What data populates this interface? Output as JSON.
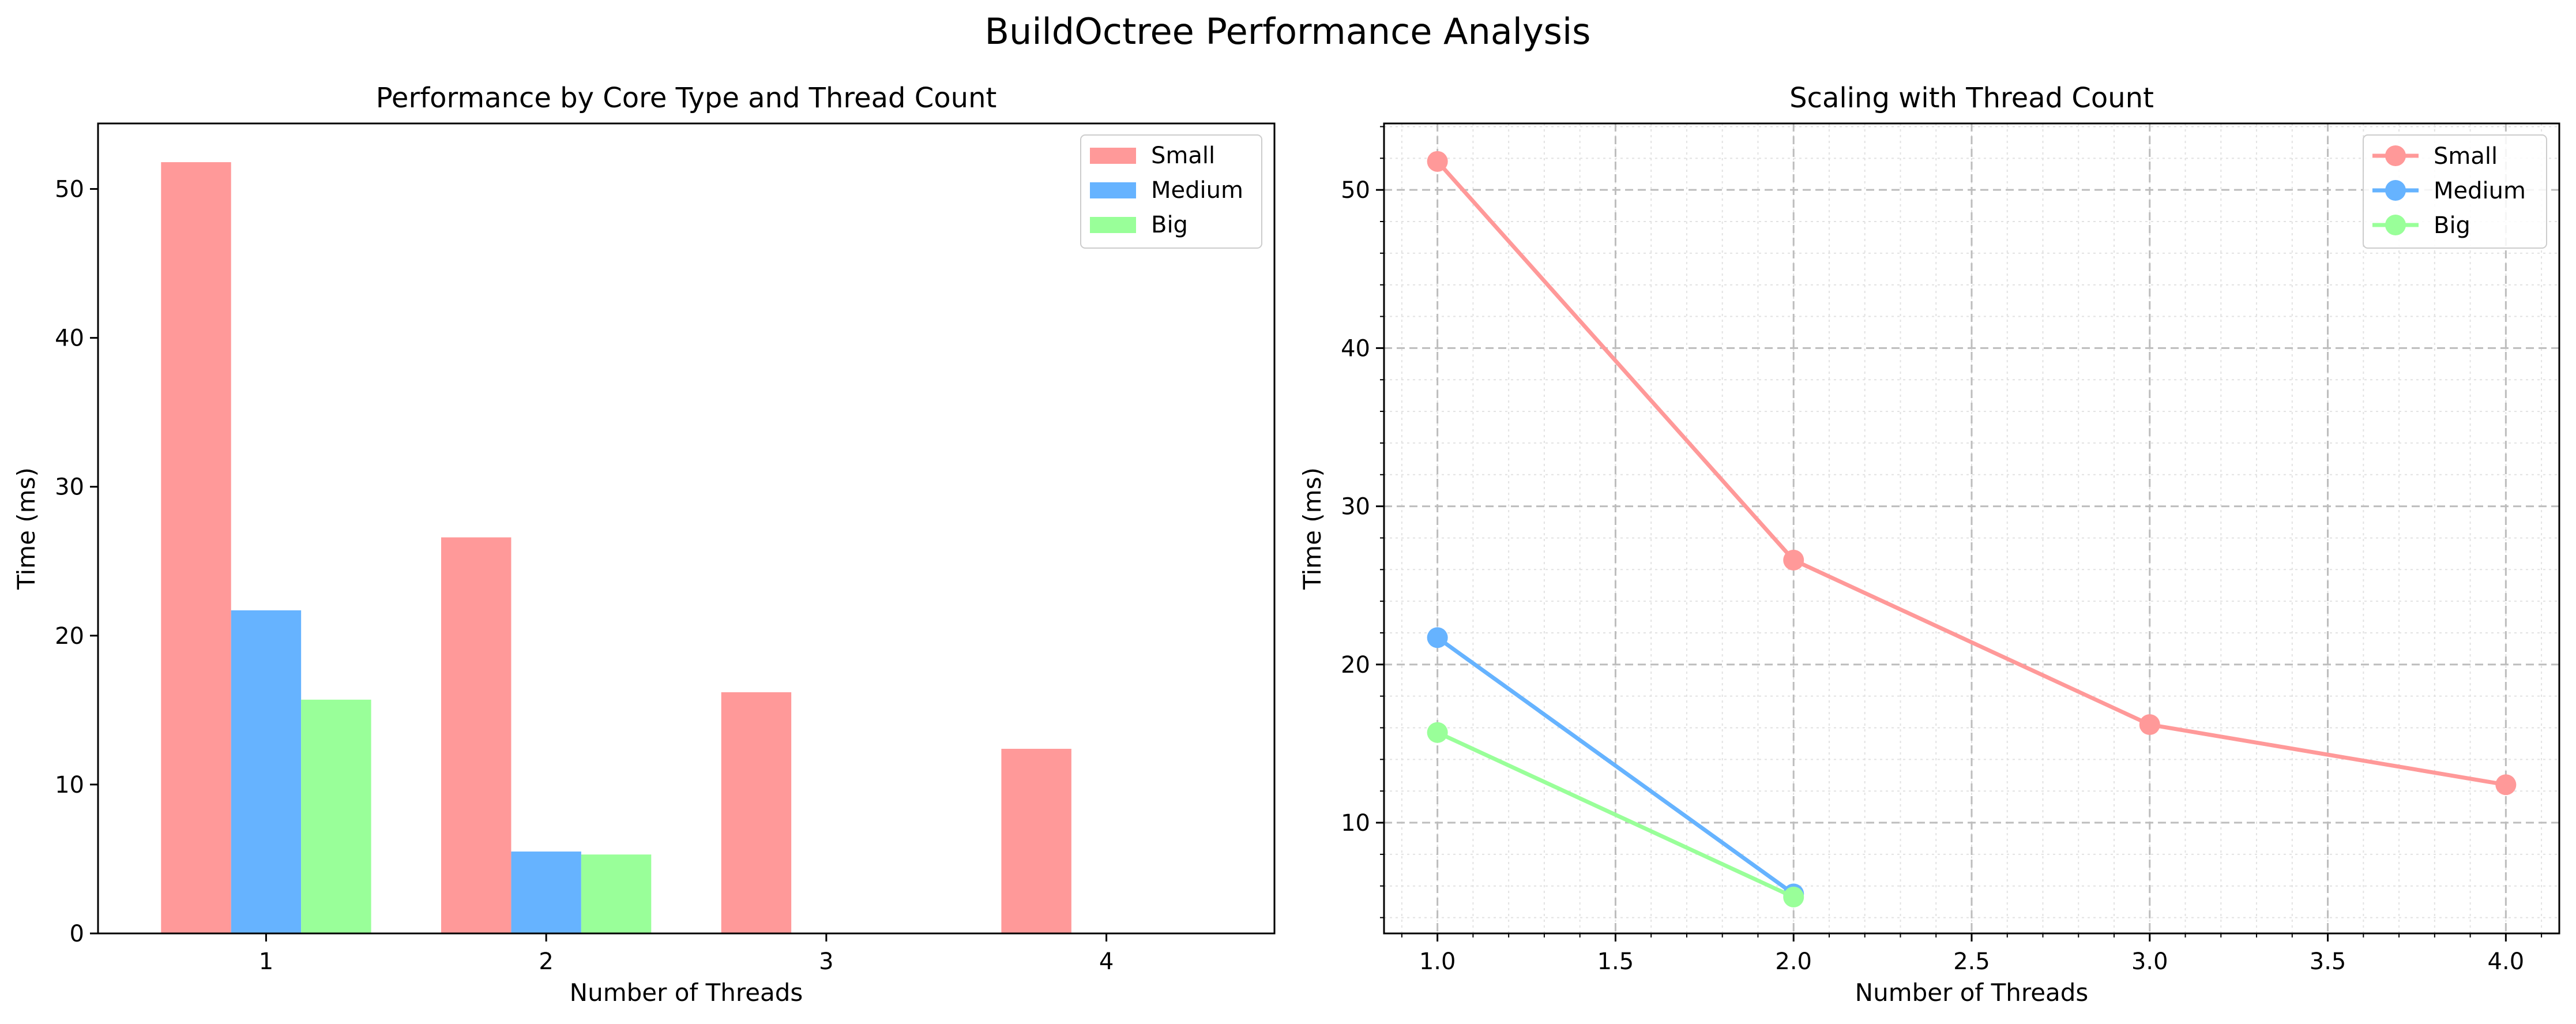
{
  "figure_title": "BuildOctree Performance Analysis",
  "colors": {
    "Small": "#ff9999",
    "Medium": "#66b3ff",
    "Big": "#99ff99"
  },
  "chart_data": [
    {
      "type": "bar",
      "title": "Performance by Core Type and Thread Count",
      "xlabel": "Number of Threads",
      "ylabel": "Time (ms)",
      "categories": [
        "1",
        "2",
        "3",
        "4"
      ],
      "series": [
        {
          "name": "Small",
          "values": [
            51.8,
            26.6,
            16.2,
            12.4
          ]
        },
        {
          "name": "Medium",
          "values": [
            21.7,
            5.5,
            null,
            null
          ]
        },
        {
          "name": "Big",
          "values": [
            15.7,
            5.3,
            null,
            null
          ]
        }
      ],
      "ylim": [
        0,
        54.4
      ],
      "yticks": [
        0,
        10,
        20,
        30,
        40,
        50
      ],
      "legend": "top-right",
      "grid": false
    },
    {
      "type": "line",
      "title": "Scaling with Thread Count",
      "xlabel": "Number of Threads",
      "ylabel": "Time (ms)",
      "series": [
        {
          "name": "Small",
          "x": [
            1,
            2,
            3,
            4
          ],
          "y": [
            51.8,
            26.6,
            16.2,
            12.4
          ]
        },
        {
          "name": "Medium",
          "x": [
            1,
            2
          ],
          "y": [
            21.7,
            5.5
          ]
        },
        {
          "name": "Big",
          "x": [
            1,
            2
          ],
          "y": [
            15.7,
            5.3
          ]
        }
      ],
      "xlim": [
        0.85,
        4.15
      ],
      "ylim": [
        3.0,
        54.2
      ],
      "xticks": [
        "1.0",
        "1.5",
        "2.0",
        "2.5",
        "3.0",
        "3.5",
        "4.0"
      ],
      "yticks": [
        10,
        20,
        30,
        40,
        50
      ],
      "legend": "top-right",
      "grid": true
    }
  ]
}
